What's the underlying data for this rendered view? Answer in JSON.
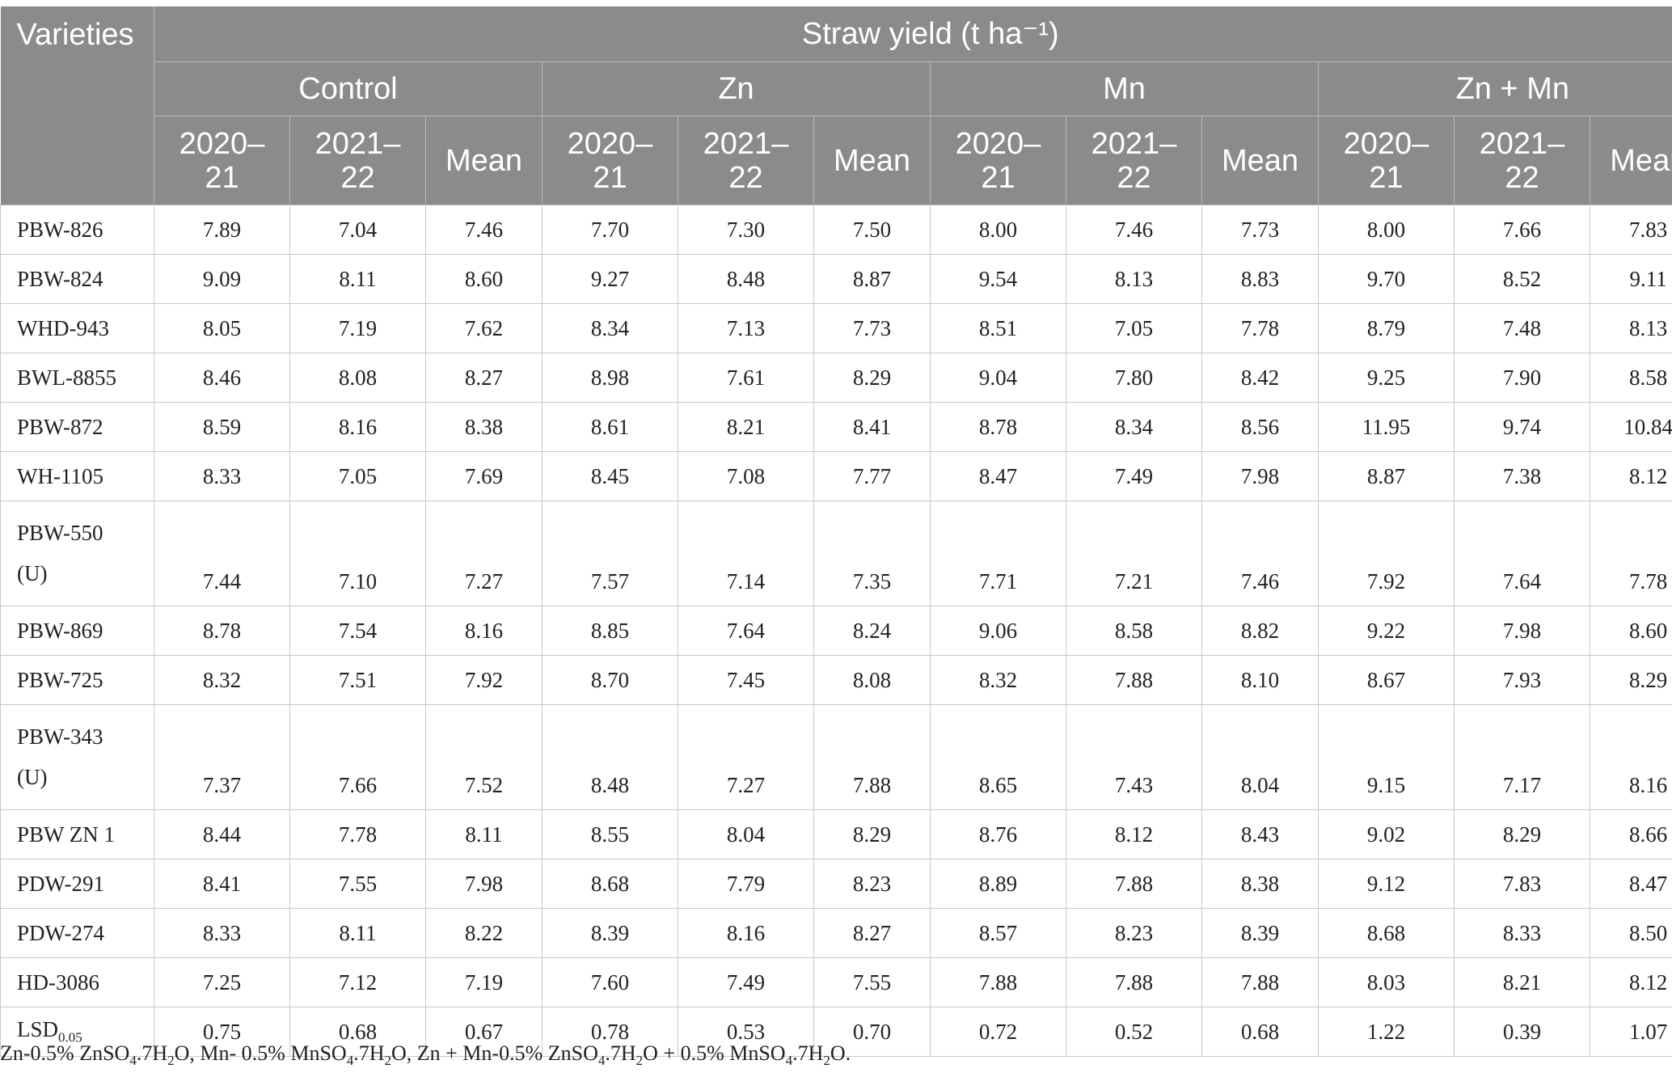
{
  "header": {
    "varieties": "Varieties",
    "straw_yield": "Straw yield (t ha⁻¹)",
    "groups": [
      "Control",
      "Zn",
      "Mn",
      "Zn + Mn"
    ],
    "sub": [
      "2020–\n21",
      "2021–\n22",
      "Mean"
    ]
  },
  "rows": [
    {
      "name": "PBW-826",
      "values": [
        "7.89",
        "7.04",
        "7.46",
        "7.70",
        "7.30",
        "7.50",
        "8.00",
        "7.46",
        "7.73",
        "8.00",
        "7.66",
        "7.83"
      ]
    },
    {
      "name": "PBW-824",
      "values": [
        "9.09",
        "8.11",
        "8.60",
        "9.27",
        "8.48",
        "8.87",
        "9.54",
        "8.13",
        "8.83",
        "9.70",
        "8.52",
        "9.11"
      ]
    },
    {
      "name": "WHD-943",
      "values": [
        "8.05",
        "7.19",
        "7.62",
        "8.34",
        "7.13",
        "7.73",
        "8.51",
        "7.05",
        "7.78",
        "8.79",
        "7.48",
        "8.13"
      ]
    },
    {
      "name": "BWL-8855",
      "values": [
        "8.46",
        "8.08",
        "8.27",
        "8.98",
        "7.61",
        "8.29",
        "9.04",
        "7.80",
        "8.42",
        "9.25",
        "7.90",
        "8.58"
      ]
    },
    {
      "name": "PBW-872",
      "values": [
        "8.59",
        "8.16",
        "8.38",
        "8.61",
        "8.21",
        "8.41",
        "8.78",
        "8.34",
        "8.56",
        "11.95",
        "9.74",
        "10.84"
      ]
    },
    {
      "name": "WH-1105",
      "values": [
        "8.33",
        "7.05",
        "7.69",
        "8.45",
        "7.08",
        "7.77",
        "8.47",
        "7.49",
        "7.98",
        "8.87",
        "7.38",
        "8.12"
      ]
    },
    {
      "name": "PBW-550\n(U)",
      "values": [
        "7.44",
        "7.10",
        "7.27",
        "7.57",
        "7.14",
        "7.35",
        "7.71",
        "7.21",
        "7.46",
        "7.92",
        "7.64",
        "7.78"
      ]
    },
    {
      "name": "PBW-869",
      "values": [
        "8.78",
        "7.54",
        "8.16",
        "8.85",
        "7.64",
        "8.24",
        "9.06",
        "8.58",
        "8.82",
        "9.22",
        "7.98",
        "8.60"
      ]
    },
    {
      "name": "PBW-725",
      "values": [
        "8.32",
        "7.51",
        "7.92",
        "8.70",
        "7.45",
        "8.08",
        "8.32",
        "7.88",
        "8.10",
        "8.67",
        "7.93",
        "8.29"
      ]
    },
    {
      "name": "PBW-343\n(U)",
      "values": [
        "7.37",
        "7.66",
        "7.52",
        "8.48",
        "7.27",
        "7.88",
        "8.65",
        "7.43",
        "8.04",
        "9.15",
        "7.17",
        "8.16"
      ]
    },
    {
      "name": "PBW ZN 1",
      "values": [
        "8.44",
        "7.78",
        "8.11",
        "8.55",
        "8.04",
        "8.29",
        "8.76",
        "8.12",
        "8.43",
        "9.02",
        "8.29",
        "8.66"
      ]
    },
    {
      "name": "PDW-291",
      "values": [
        "8.41",
        "7.55",
        "7.98",
        "8.68",
        "7.79",
        "8.23",
        "8.89",
        "7.88",
        "8.38",
        "9.12",
        "7.83",
        "8.47"
      ]
    },
    {
      "name": "PDW-274",
      "values": [
        "8.33",
        "8.11",
        "8.22",
        "8.39",
        "8.16",
        "8.27",
        "8.57",
        "8.23",
        "8.39",
        "8.68",
        "8.33",
        "8.50"
      ]
    },
    {
      "name": "HD-3086",
      "values": [
        "7.25",
        "7.12",
        "7.19",
        "7.60",
        "7.49",
        "7.55",
        "7.88",
        "7.88",
        "7.88",
        "8.03",
        "8.21",
        "8.12"
      ]
    }
  ],
  "lsd": {
    "label": "LSD",
    "label_sub": "0.05",
    "values": [
      "0.75",
      "0.68",
      "0.67",
      "0.78",
      "0.53",
      "0.70",
      "0.72",
      "0.52",
      "0.68",
      "1.22",
      "0.39",
      "1.07"
    ]
  },
  "footnote": {
    "p1": "Zn-0.5% ZnSO",
    "p2": "4",
    "p3": ".7H",
    "p4": "2",
    "p5": "O, Mn- 0.5% MnSO",
    "p6": "4",
    "p7": ".7H",
    "p8": "2",
    "p9": "O, Zn + Mn-0.5% ZnSO",
    "p10": "4",
    "p11": ".7H",
    "p12": "2",
    "p13": "O + 0.5% MnSO",
    "p14": "4",
    "p15": ".7H",
    "p16": "2",
    "p17": "O."
  }
}
